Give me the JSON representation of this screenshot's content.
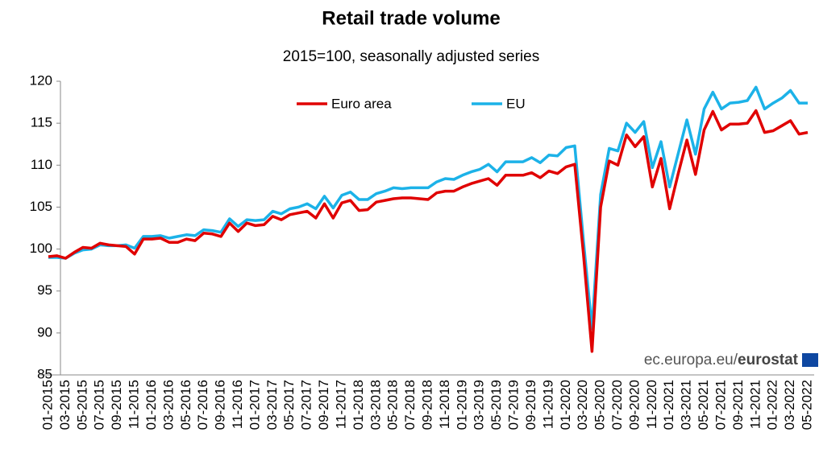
{
  "chart_data": {
    "type": "line",
    "title": "Retail trade volume",
    "subtitle": "2015=100, seasonally adjusted series",
    "source": "ec.europa.eu/",
    "source_brand": "eurostat",
    "categories": [
      "01-2015",
      null,
      "03-2015",
      null,
      "05-2015",
      null,
      "07-2015",
      null,
      "09-2015",
      null,
      "11-2015",
      null,
      "01-2016",
      null,
      "03-2016",
      null,
      "05-2016",
      null,
      "07-2016",
      null,
      "09-2016",
      null,
      "11-2016",
      null,
      "01-2017",
      null,
      "03-2017",
      null,
      "05-2017",
      null,
      "07-2017",
      null,
      "09-2017",
      null,
      "11-2017",
      null,
      "01-2018",
      null,
      "03-2018",
      null,
      "05-2018",
      null,
      "07-2018",
      null,
      "09-2018",
      null,
      "11-2018",
      null,
      "01-2019",
      null,
      "03-2019",
      null,
      "05-2019",
      null,
      "07-2019",
      null,
      "09-2019",
      null,
      "11-2019",
      null,
      "01-2020",
      null,
      "03-2020",
      null,
      "05-2020",
      null,
      "07-2020",
      null,
      "09-2020",
      null,
      "11-2020",
      null,
      "01-2021",
      null,
      "03-2021",
      null,
      "05-2021",
      null,
      "07-2021",
      null,
      "09-2021",
      null,
      "11-2021",
      null,
      "01-2022",
      null,
      "03-2022",
      null,
      "05-2022"
    ],
    "series": [
      {
        "name": "Euro area",
        "color": "#e00000",
        "values": [
          99.1,
          99.2,
          98.9,
          99.6,
          100.2,
          100.1,
          100.7,
          100.5,
          100.4,
          100.3,
          99.4,
          101.2,
          101.2,
          101.3,
          100.8,
          100.8,
          101.2,
          101.0,
          101.9,
          101.8,
          101.5,
          103.1,
          102.1,
          103.1,
          102.8,
          102.9,
          103.9,
          103.5,
          104.1,
          104.3,
          104.5,
          103.7,
          105.4,
          103.7,
          105.5,
          105.8,
          104.6,
          104.7,
          105.6,
          105.8,
          106.0,
          106.1,
          106.1,
          106.0,
          105.9,
          106.7,
          106.9,
          106.9,
          107.4,
          107.8,
          108.1,
          108.4,
          107.6,
          108.8,
          108.8,
          108.8,
          109.1,
          108.5,
          109.3,
          109.0,
          109.8,
          110.1,
          99.5,
          87.8,
          105.0,
          110.5,
          110.0,
          113.6,
          112.2,
          113.4,
          107.4,
          110.8,
          104.8,
          109.0,
          113.0,
          108.9,
          114.2,
          116.4,
          114.2,
          114.9,
          114.9,
          115.0,
          116.5,
          113.9,
          114.1,
          114.7,
          115.3,
          113.7,
          113.9
        ]
      },
      {
        "name": "EU",
        "color": "#1cb2e8",
        "values": [
          99.0,
          99.0,
          98.9,
          99.5,
          99.9,
          100.0,
          100.5,
          100.4,
          100.4,
          100.5,
          100.1,
          101.5,
          101.5,
          101.6,
          101.3,
          101.5,
          101.7,
          101.6,
          102.3,
          102.2,
          102.0,
          103.6,
          102.7,
          103.5,
          103.4,
          103.5,
          104.5,
          104.2,
          104.8,
          105.0,
          105.4,
          104.8,
          106.3,
          104.9,
          106.4,
          106.8,
          105.9,
          105.9,
          106.6,
          106.9,
          107.3,
          107.2,
          107.3,
          107.3,
          107.3,
          108.0,
          108.4,
          108.3,
          108.8,
          109.2,
          109.5,
          110.1,
          109.2,
          110.4,
          110.4,
          110.4,
          110.9,
          110.3,
          111.2,
          111.1,
          112.1,
          112.3,
          101.1,
          90.5,
          106.5,
          112.0,
          111.7,
          115.0,
          113.9,
          115.2,
          109.7,
          112.8,
          107.4,
          111.4,
          115.4,
          111.3,
          116.7,
          118.7,
          116.7,
          117.4,
          117.5,
          117.7,
          119.3,
          116.7,
          117.4,
          118.0,
          118.9,
          117.4,
          117.4
        ]
      }
    ],
    "ylim": [
      85,
      120
    ],
    "yticks": [
      85,
      90,
      95,
      100,
      105,
      110,
      115,
      120
    ],
    "grid": false,
    "legend": "top"
  }
}
